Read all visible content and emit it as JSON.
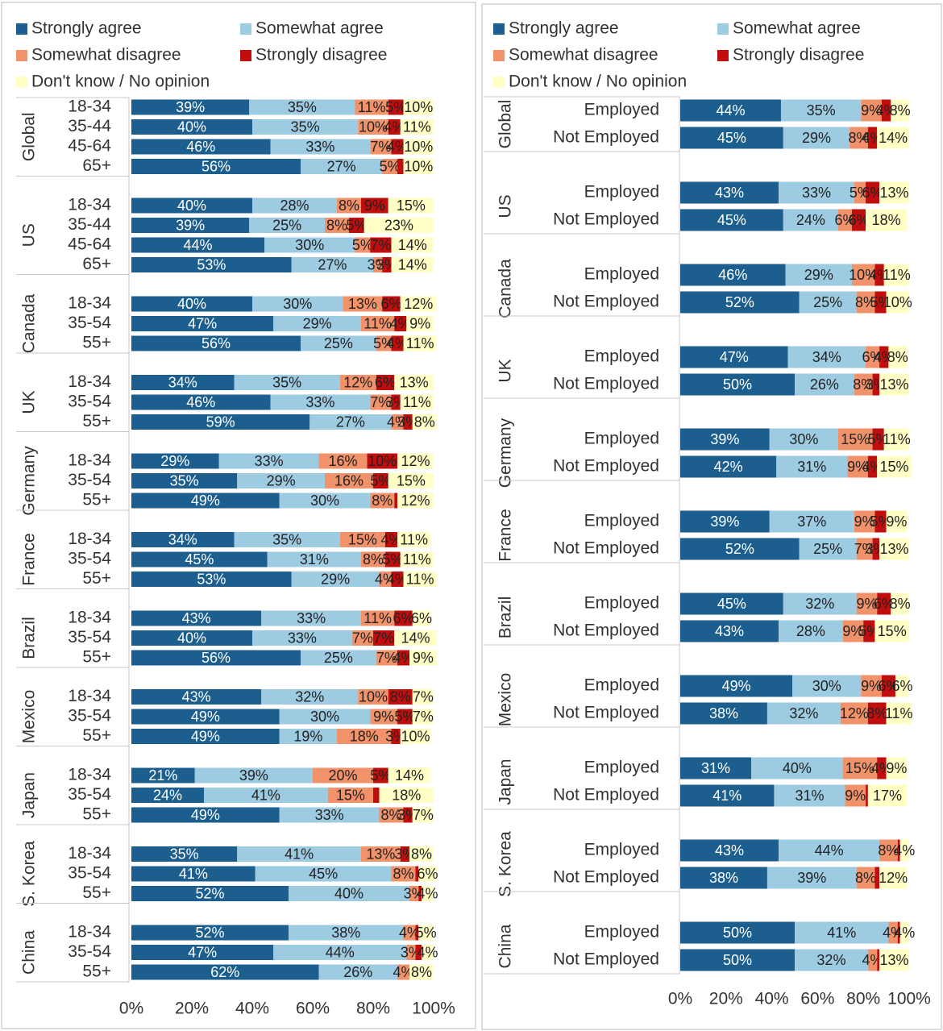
{
  "chart_data": [
    {
      "type": "bar",
      "orientation": "horizontal",
      "stacked": true,
      "legend": "top",
      "groups": [
        {
          "name": "Global",
          "categories": [
            "18-34",
            "35-44",
            "45-64",
            "65+"
          ]
        },
        {
          "name": "US",
          "categories": [
            "18-34",
            "35-44",
            "45-64",
            "65+"
          ]
        },
        {
          "name": "Canada",
          "categories": [
            "18-34",
            "35-54",
            "55+"
          ]
        },
        {
          "name": "UK",
          "categories": [
            "18-34",
            "35-54",
            "55+"
          ]
        },
        {
          "name": "Germany",
          "categories": [
            "18-34",
            "35-54",
            "55+"
          ]
        },
        {
          "name": "France",
          "categories": [
            "18-34",
            "35-54",
            "55+"
          ]
        },
        {
          "name": "Brazil",
          "categories": [
            "18-34",
            "35-54",
            "55+"
          ]
        },
        {
          "name": "Mexico",
          "categories": [
            "18-34",
            "35-54",
            "55+"
          ]
        },
        {
          "name": "Japan",
          "categories": [
            "18-34",
            "35-54",
            "55+"
          ]
        },
        {
          "name": "S. Korea",
          "categories": [
            "18-34",
            "35-54",
            "55+"
          ]
        },
        {
          "name": "China",
          "categories": [
            "18-34",
            "35-54",
            "55+"
          ]
        }
      ],
      "series": [
        {
          "name": "Strongly agree",
          "color": "#1c5f8e",
          "values": [
            39,
            40,
            46,
            56,
            40,
            39,
            44,
            53,
            40,
            47,
            56,
            34,
            46,
            59,
            29,
            35,
            49,
            34,
            45,
            53,
            43,
            40,
            56,
            43,
            49,
            49,
            21,
            24,
            49,
            35,
            41,
            52,
            52,
            47,
            62
          ],
          "value_labels": [
            "39%",
            "40%",
            "46%",
            "56%",
            "40%",
            "39%",
            "44%",
            "53%",
            "40%",
            "47%",
            "56%",
            "34%",
            "46%",
            "59%",
            "29%",
            "35%",
            "49%",
            "34%",
            "45%",
            "53%",
            "43%",
            "40%",
            "56%",
            "43%",
            "49%",
            "49%",
            "21%",
            "24%",
            "49%",
            "35%",
            "41%",
            "52%",
            "52%",
            "47%",
            "62%"
          ]
        },
        {
          "name": "Somewhat agree",
          "color": "#9dcbe2",
          "values": [
            35,
            35,
            33,
            27,
            28,
            25,
            30,
            27,
            30,
            29,
            25,
            35,
            33,
            27,
            33,
            29,
            30,
            35,
            31,
            29,
            33,
            33,
            25,
            32,
            30,
            19,
            39,
            41,
            33,
            41,
            45,
            40,
            38,
            44,
            26
          ],
          "value_labels": [
            "35%",
            "35%",
            "33%",
            "27%",
            "28%",
            "25%",
            "30%",
            "27%",
            "30%",
            "29%",
            "25%",
            "35%",
            "33%",
            "27%",
            "33%",
            "29%",
            "30%",
            "35%",
            "31%",
            "29%",
            "33%",
            "33%",
            "25%",
            "32%",
            "30%",
            "19%",
            "39%",
            "41%",
            "33%",
            "41%",
            "45%",
            "40%",
            "38%",
            "44%",
            "26%"
          ]
        },
        {
          "name": "Somewhat disagree",
          "color": "#f2926a",
          "values": [
            11,
            10,
            7,
            5,
            8,
            8,
            5,
            3,
            13,
            11,
            5,
            12,
            7,
            4,
            16,
            16,
            8,
            15,
            8,
            4,
            11,
            7,
            7,
            10,
            9,
            18,
            20,
            15,
            8,
            13,
            8,
            3,
            4,
            3,
            4
          ],
          "value_labels": [
            "11%",
            "10%",
            "7%",
            "5%",
            "8%",
            "8%",
            "5%",
            "3%",
            "13%",
            "11%",
            "5%",
            "12%",
            "7%",
            "4%",
            "16%",
            "16%",
            "8%",
            "15%",
            "8%",
            "4%",
            "11%",
            "7%",
            "7%",
            "10%",
            "9%",
            "18%",
            "20%",
            "15%",
            "8%",
            "13%",
            "8%",
            "3%",
            "4%",
            "3%",
            "4%"
          ]
        },
        {
          "name": "Strongly disagree",
          "color": "#c00d0d",
          "values": [
            5,
            4,
            4,
            2,
            9,
            5,
            7,
            3,
            6,
            4,
            4,
            6,
            3,
            3,
            10,
            5,
            1,
            4,
            5,
            4,
            6,
            7,
            4,
            8,
            5,
            3,
            5,
            2,
            3,
            3,
            1,
            1,
            1,
            2,
            0
          ],
          "value_labels": [
            "5%",
            "4%",
            "4%",
            null,
            "9%",
            "5%",
            "7%",
            "3%",
            "6%",
            "4%",
            "4%",
            "6%",
            "3%",
            "3%",
            "10%",
            "5%",
            null,
            "4%",
            "5%",
            "4%",
            "6%",
            "7%",
            "4%",
            "8%",
            "5%",
            "3%",
            "5%",
            null,
            "3%",
            "3%",
            null,
            null,
            null,
            null,
            null
          ]
        },
        {
          "name": "Don't know / No opinion",
          "color": "#ffffc6",
          "values": [
            10,
            11,
            10,
            10,
            15,
            23,
            14,
            14,
            12,
            9,
            11,
            13,
            11,
            8,
            12,
            15,
            12,
            11,
            11,
            11,
            6,
            14,
            9,
            7,
            7,
            10,
            14,
            18,
            7,
            8,
            6,
            4,
            5,
            4,
            8
          ],
          "value_labels": [
            "10%",
            "11%",
            "10%",
            "10%",
            "15%",
            "23%",
            "14%",
            "14%",
            "12%",
            "9%",
            "11%",
            "13%",
            "11%",
            "8%",
            "12%",
            "15%",
            "12%",
            "11%",
            "11%",
            "11%",
            "6%",
            "14%",
            "9%",
            "7%",
            "7%",
            "10%",
            "14%",
            "18%",
            "7%",
            "8%",
            "6%",
            "4%",
            "5%",
            "4%",
            "8%"
          ]
        }
      ],
      "xlim": [
        0,
        100
      ],
      "xticks": [
        {
          "value": 0,
          "label": "0%"
        },
        {
          "value": 20,
          "label": "20%"
        },
        {
          "value": 40,
          "label": "40%"
        },
        {
          "value": 60,
          "label": "60%"
        },
        {
          "value": 80,
          "label": "80%"
        },
        {
          "value": 100,
          "label": "100%"
        }
      ]
    },
    {
      "type": "bar",
      "orientation": "horizontal",
      "stacked": true,
      "legend": "top",
      "groups": [
        {
          "name": "Global",
          "categories": [
            "Employed",
            "Not Employed"
          ]
        },
        {
          "name": "US",
          "categories": [
            "Employed",
            "Not Employed"
          ]
        },
        {
          "name": "Canada",
          "categories": [
            "Employed",
            "Not Employed"
          ]
        },
        {
          "name": "UK",
          "categories": [
            "Employed",
            "Not Employed"
          ]
        },
        {
          "name": "Germany",
          "categories": [
            "Employed",
            "Not Employed"
          ]
        },
        {
          "name": "France",
          "categories": [
            "Employed",
            "Not Employed"
          ]
        },
        {
          "name": "Brazil",
          "categories": [
            "Employed",
            "Not Employed"
          ]
        },
        {
          "name": "Mexico",
          "categories": [
            "Employed",
            "Not Employed"
          ]
        },
        {
          "name": "Japan",
          "categories": [
            "Employed",
            "Not Employed"
          ]
        },
        {
          "name": "S. Korea",
          "categories": [
            "Employed",
            "Not Employed"
          ]
        },
        {
          "name": "China",
          "categories": [
            "Employed",
            "Not Employed"
          ]
        }
      ],
      "series": [
        {
          "name": "Strongly agree",
          "color": "#1c5f8e",
          "values": [
            44,
            45,
            43,
            45,
            46,
            52,
            47,
            50,
            39,
            42,
            39,
            52,
            45,
            43,
            49,
            38,
            31,
            41,
            43,
            38,
            50,
            50
          ],
          "value_labels": [
            "44%",
            "45%",
            "43%",
            "45%",
            "46%",
            "52%",
            "47%",
            "50%",
            "39%",
            "42%",
            "39%",
            "52%",
            "45%",
            "43%",
            "49%",
            "38%",
            "31%",
            "41%",
            "43%",
            "38%",
            "50%",
            "50%"
          ]
        },
        {
          "name": "Somewhat agree",
          "color": "#9dcbe2",
          "values": [
            35,
            29,
            33,
            24,
            29,
            25,
            34,
            26,
            30,
            31,
            37,
            25,
            32,
            28,
            30,
            32,
            40,
            31,
            44,
            39,
            41,
            32
          ],
          "value_labels": [
            "35%",
            "29%",
            "33%",
            "24%",
            "29%",
            "25%",
            "34%",
            "26%",
            "30%",
            "31%",
            "37%",
            "25%",
            "32%",
            "28%",
            "30%",
            "32%",
            "40%",
            "31%",
            "44%",
            "39%",
            "41%",
            "32%"
          ]
        },
        {
          "name": "Somewhat disagree",
          "color": "#f2926a",
          "values": [
            9,
            8,
            5,
            6,
            10,
            8,
            6,
            8,
            15,
            9,
            9,
            7,
            9,
            9,
            9,
            12,
            15,
            9,
            8,
            8,
            4,
            4
          ],
          "value_labels": [
            "9%",
            "8%",
            "5%",
            "6%",
            "10%",
            "8%",
            "6%",
            "8%",
            "15%",
            "9%",
            "9%",
            "7%",
            "9%",
            "9%",
            "9%",
            "12%",
            "15%",
            "9%",
            "8%",
            "8%",
            "4%",
            "4%"
          ]
        },
        {
          "name": "Strongly disagree",
          "color": "#c00d0d",
          "values": [
            4,
            4,
            6,
            6,
            4,
            5,
            4,
            3,
            5,
            4,
            5,
            3,
            6,
            5,
            6,
            8,
            4,
            1,
            1,
            2,
            1,
            1
          ],
          "value_labels": [
            "4%",
            "4%",
            "6%",
            "6%",
            "4%",
            "5%",
            "4%",
            "3%",
            "5%",
            "4%",
            "5%",
            "3%",
            "6%",
            "5%",
            "6%",
            "8%",
            "4%",
            null,
            null,
            null,
            null,
            null
          ]
        },
        {
          "name": "Don't know / No opinion",
          "color": "#ffffc6",
          "values": [
            8,
            14,
            13,
            18,
            11,
            10,
            8,
            13,
            11,
            15,
            9,
            13,
            8,
            15,
            6,
            11,
            9,
            17,
            4,
            12,
            4,
            13
          ],
          "value_labels": [
            "8%",
            "14%",
            "13%",
            "18%",
            "11%",
            "10%",
            "8%",
            "13%",
            "11%",
            "15%",
            "9%",
            "13%",
            "8%",
            "15%",
            "6%",
            "11%",
            "9%",
            "17%",
            "4%",
            "12%",
            "4%",
            "13%"
          ]
        }
      ],
      "xlim": [
        0,
        100
      ],
      "xticks": [
        {
          "value": 0,
          "label": "0%"
        },
        {
          "value": 20,
          "label": "20%"
        },
        {
          "value": 40,
          "label": "40%"
        },
        {
          "value": 60,
          "label": "60%"
        },
        {
          "value": 80,
          "label": "80%"
        },
        {
          "value": 100,
          "label": "100%"
        }
      ]
    }
  ]
}
